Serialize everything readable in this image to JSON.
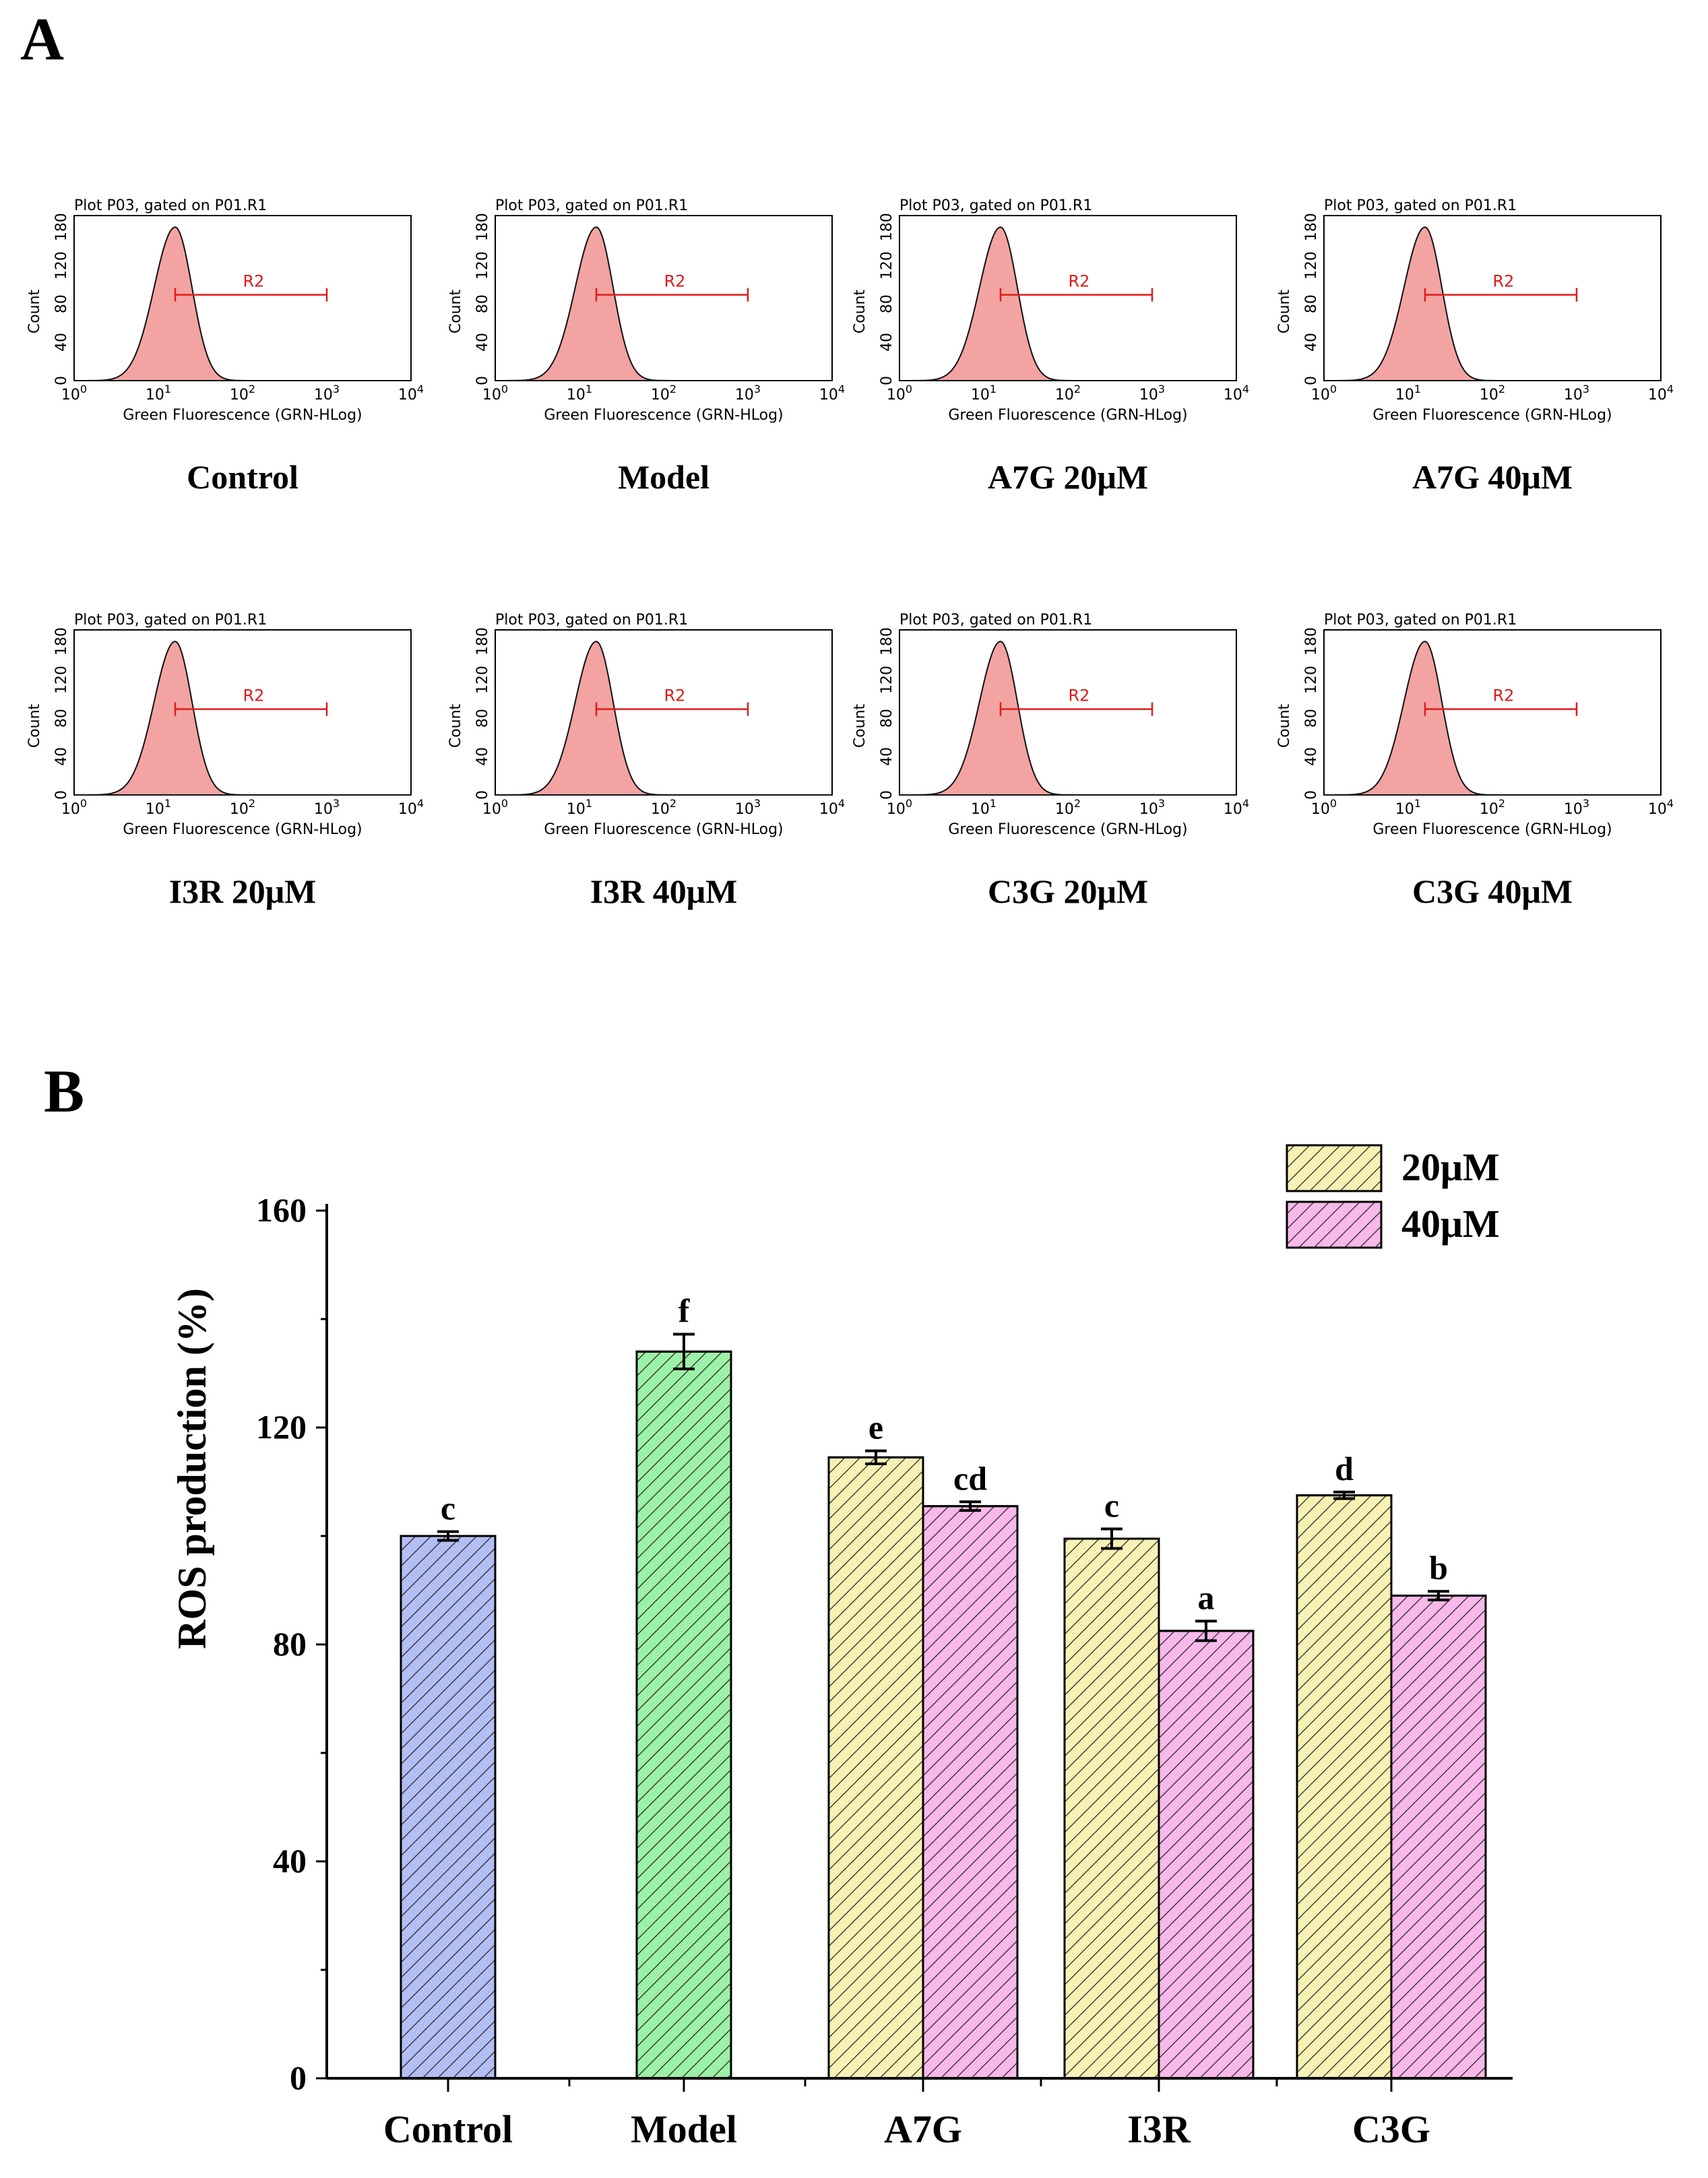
{
  "panel_a": {
    "label": "A",
    "plot_title": "Plot P03, gated on P01.R1",
    "y_axis_label": "Count",
    "x_axis_label": "Green Fluorescence (GRN-HLog)",
    "gate_label": "R2",
    "y_ticks": [
      "0",
      "40",
      "80",
      "120",
      "180"
    ],
    "x_tick_base": "10",
    "x_tick_exponents": [
      "0",
      "1",
      "2",
      "3",
      "4"
    ],
    "plots": [
      {
        "caption": "Control"
      },
      {
        "caption": "Model"
      },
      {
        "caption": "A7G 20μM"
      },
      {
        "caption": "A7G 40μM"
      },
      {
        "caption": "I3R 20μM"
      },
      {
        "caption": "I3R 40μM"
      },
      {
        "caption": "C3G 20μM"
      },
      {
        "caption": "C3G 40μM"
      }
    ]
  },
  "panel_b": {
    "label": "B"
  },
  "colors": {
    "histogram_fill": "#f4a3a3",
    "gate": "#e01b1b",
    "control": "#b3bef5",
    "model": "#9df0a8",
    "dose_20": "#f8f1b5",
    "dose_40": "#f8b8ea"
  },
  "chart_data": {
    "type": "bar",
    "title": "",
    "xlabel": "",
    "ylabel": "ROS production (%)",
    "ylim": [
      0,
      160
    ],
    "yticks": [
      0,
      40,
      80,
      120,
      160
    ],
    "categories": [
      "Control",
      "Model",
      "A7G",
      "I3R",
      "C3G"
    ],
    "legend": [
      "20μM",
      "40μM"
    ],
    "legend_position": "top-right",
    "bars": [
      {
        "category": "Control",
        "series": "control",
        "value": 100,
        "error": 0.8,
        "letter": "c"
      },
      {
        "category": "Model",
        "series": "model",
        "value": 134,
        "error": 3.2,
        "letter": "f"
      },
      {
        "category": "A7G",
        "series": "20μM",
        "value": 114.5,
        "error": 1.2,
        "letter": "e"
      },
      {
        "category": "A7G",
        "series": "40μM",
        "value": 105.5,
        "error": 0.8,
        "letter": "cd"
      },
      {
        "category": "I3R",
        "series": "20μM",
        "value": 99.5,
        "error": 1.8,
        "letter": "c"
      },
      {
        "category": "I3R",
        "series": "40μM",
        "value": 82.5,
        "error": 1.8,
        "letter": "a"
      },
      {
        "category": "C3G",
        "series": "20μM",
        "value": 107.5,
        "error": 0.6,
        "letter": "d"
      },
      {
        "category": "C3G",
        "series": "40μM",
        "value": 89,
        "error": 0.8,
        "letter": "b"
      }
    ]
  }
}
